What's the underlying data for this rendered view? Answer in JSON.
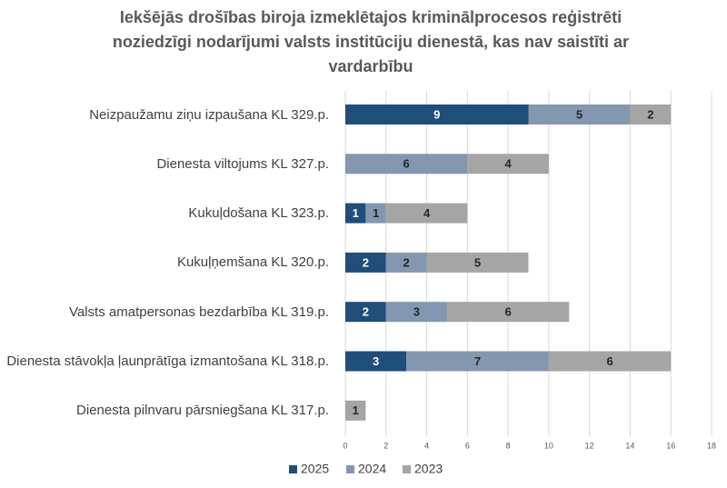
{
  "chart_data": {
    "type": "stacked-bar-horizontal",
    "title": [
      "Iekšējās drošības biroja izmeklētajos kriminālprocesos reģistrēti",
      "noziedzīgi nodarījumi valsts institūciju dienestā, kas nav saistīti ar",
      "vardarbību"
    ],
    "categories": [
      "Neizpaužamu ziņu izpaušana KL 329.p.",
      "Dienesta viltojums KL 327.p.",
      "Kukuļdošana KL 323.p.",
      "Kukuļņemšana KL 320.p.",
      "Valsts amatpersonas bezdarbība KL 319.p.",
      "Dienesta stāvokļa ļaunprātīga izmantošana KL 318.p.",
      "Dienesta pilnvaru pārsniegšana KL 317.p."
    ],
    "series": [
      {
        "name": "2025",
        "color": "#1f4e79",
        "values": [
          9,
          null,
          1,
          2,
          2,
          3,
          null
        ]
      },
      {
        "name": "2024",
        "color": "#8497b0",
        "values": [
          5,
          6,
          1,
          2,
          3,
          7,
          null
        ]
      },
      {
        "name": "2023",
        "color": "#a5a5a5",
        "values": [
          2,
          4,
          4,
          5,
          6,
          6,
          1
        ]
      }
    ],
    "xlim": [
      0,
      18
    ],
    "xticks": [
      0,
      2,
      4,
      6,
      8,
      10,
      12,
      14,
      16,
      18
    ],
    "grid": true,
    "legend": "bottom"
  }
}
